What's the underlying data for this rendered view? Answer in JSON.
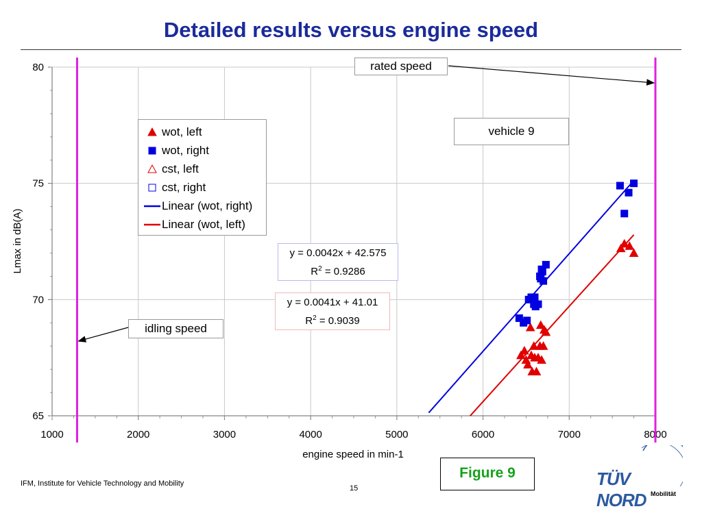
{
  "slide": {
    "title": "Detailed results versus engine speed",
    "footer": "IFM, Institute for Vehicle Technology and Mobility",
    "page_number": "15",
    "figure_label": "Figure 9",
    "logo_text": "TÜV NORD",
    "logo_subtext": "Mobilität"
  },
  "annotations": {
    "rated_speed": "rated speed",
    "idling_speed": "idling speed",
    "vehicle": "vehicle 9",
    "eq_right": "y = 0.0042x + 42.575",
    "r2_right_prefix": "R",
    "r2_right_sup": "2",
    "r2_right_value": " = 0.9286",
    "eq_left": "y = 0.0041x + 41.01",
    "r2_left_prefix": "R",
    "r2_left_sup": "2",
    "r2_left_value": " = 0.9039"
  },
  "legend": [
    {
      "label": "wot, left",
      "symbol": "triangle-filled",
      "color": "#e00000"
    },
    {
      "label": "wot, right",
      "symbol": "square-filled",
      "color": "#0000e0"
    },
    {
      "label": "cst, left",
      "symbol": "triangle-open",
      "color": "#e00000"
    },
    {
      "label": "cst, right",
      "symbol": "square-open",
      "color": "#0000e0"
    },
    {
      "label": "Linear (wot, right)",
      "symbol": "line",
      "color": "#0000e0"
    },
    {
      "label": "Linear (wot, left)",
      "symbol": "line",
      "color": "#e00000"
    }
  ],
  "colors": {
    "title": "#1a2b9a",
    "red": "#e00000",
    "blue": "#0000e0",
    "vertical_marker": "#e020e0",
    "figure_label": "#17a11b"
  },
  "chart_data": {
    "type": "scatter",
    "xlabel": "engine speed in min-1",
    "ylabel": "Lmax in dB(A)",
    "xlim": [
      1000,
      8000
    ],
    "ylim": [
      65,
      80
    ],
    "x_ticks": [
      1000,
      2000,
      3000,
      4000,
      5000,
      6000,
      7000,
      8000
    ],
    "y_ticks": [
      65,
      70,
      75,
      80
    ],
    "grid": true,
    "legend_position": "top-left",
    "vertical_lines": [
      {
        "name": "idling speed",
        "x": 1290
      },
      {
        "name": "rated speed",
        "x": 8000
      }
    ],
    "series": [
      {
        "name": "wot, left",
        "marker": "triangle-filled",
        "color": "#e00000",
        "points": [
          [
            6440,
            67.6
          ],
          [
            6480,
            67.8
          ],
          [
            6500,
            67.4
          ],
          [
            6520,
            67.2
          ],
          [
            6550,
            68.8
          ],
          [
            6560,
            67.6
          ],
          [
            6570,
            66.9
          ],
          [
            6590,
            68.0
          ],
          [
            6600,
            67.5
          ],
          [
            6620,
            66.9
          ],
          [
            6640,
            67.5
          ],
          [
            6660,
            68.0
          ],
          [
            6670,
            68.9
          ],
          [
            6680,
            67.4
          ],
          [
            6700,
            68.0
          ],
          [
            6710,
            68.7
          ],
          [
            6730,
            68.6
          ],
          [
            7600,
            72.2
          ],
          [
            7640,
            72.4
          ],
          [
            7700,
            72.3
          ],
          [
            7750,
            72.0
          ]
        ]
      },
      {
        "name": "wot, right",
        "marker": "square-filled",
        "color": "#0000e0",
        "points": [
          [
            6420,
            69.2
          ],
          [
            6470,
            69.0
          ],
          [
            6510,
            69.1
          ],
          [
            6530,
            70.0
          ],
          [
            6560,
            70.1
          ],
          [
            6590,
            69.8
          ],
          [
            6600,
            70.1
          ],
          [
            6610,
            69.7
          ],
          [
            6640,
            69.8
          ],
          [
            6660,
            71.0
          ],
          [
            6670,
            70.9
          ],
          [
            6680,
            71.3
          ],
          [
            6690,
            71.2
          ],
          [
            6700,
            70.8
          ],
          [
            6730,
            71.5
          ],
          [
            7590,
            74.9
          ],
          [
            7640,
            73.7
          ],
          [
            7690,
            74.6
          ],
          [
            7750,
            75.0
          ]
        ]
      },
      {
        "name": "cst, left",
        "marker": "triangle-open",
        "color": "#e00000",
        "points": []
      },
      {
        "name": "cst, right",
        "marker": "square-open",
        "color": "#0000e0",
        "points": []
      },
      {
        "name": "Linear (wot, right)",
        "type": "line",
        "color": "#0000e0",
        "slope": 0.0042,
        "intercept": 42.575,
        "x_range": [
          5370,
          7740
        ]
      },
      {
        "name": "Linear (wot, left)",
        "type": "line",
        "color": "#e00000",
        "slope": 0.0041,
        "intercept": 41.01,
        "x_range": [
          5850,
          7750
        ]
      }
    ]
  }
}
